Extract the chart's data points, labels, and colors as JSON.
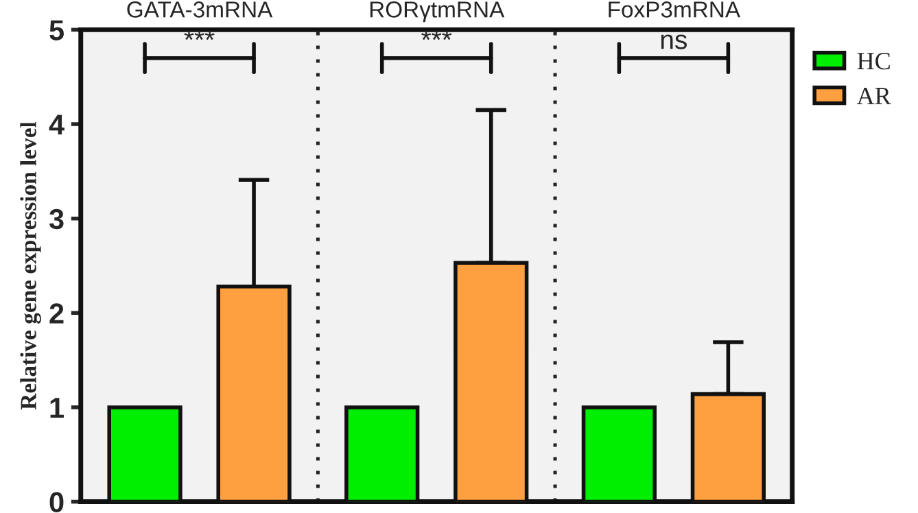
{
  "chart_data": {
    "type": "bar",
    "ylabel": "Relative gene expression level",
    "categories": [
      "GATA-3mRNA",
      "RORγtmRNA",
      "FoxP3mRNA"
    ],
    "series": [
      {
        "name": "HC",
        "color": "#00ee00",
        "values": [
          1.0,
          1.0,
          1.0
        ]
      },
      {
        "name": "AR",
        "color": "#ffa040",
        "values": [
          2.28,
          2.53,
          1.14
        ],
        "errors": [
          [
            2.28,
            3.41
          ],
          [
            2.53,
            4.15
          ],
          [
            1.14,
            1.69
          ]
        ]
      }
    ],
    "ylim": [
      0,
      5
    ],
    "yticks": [
      0,
      1,
      2,
      3,
      4,
      5
    ],
    "annotations": [
      "***",
      "***",
      "ns"
    ],
    "legend": "top right",
    "grid": false
  }
}
